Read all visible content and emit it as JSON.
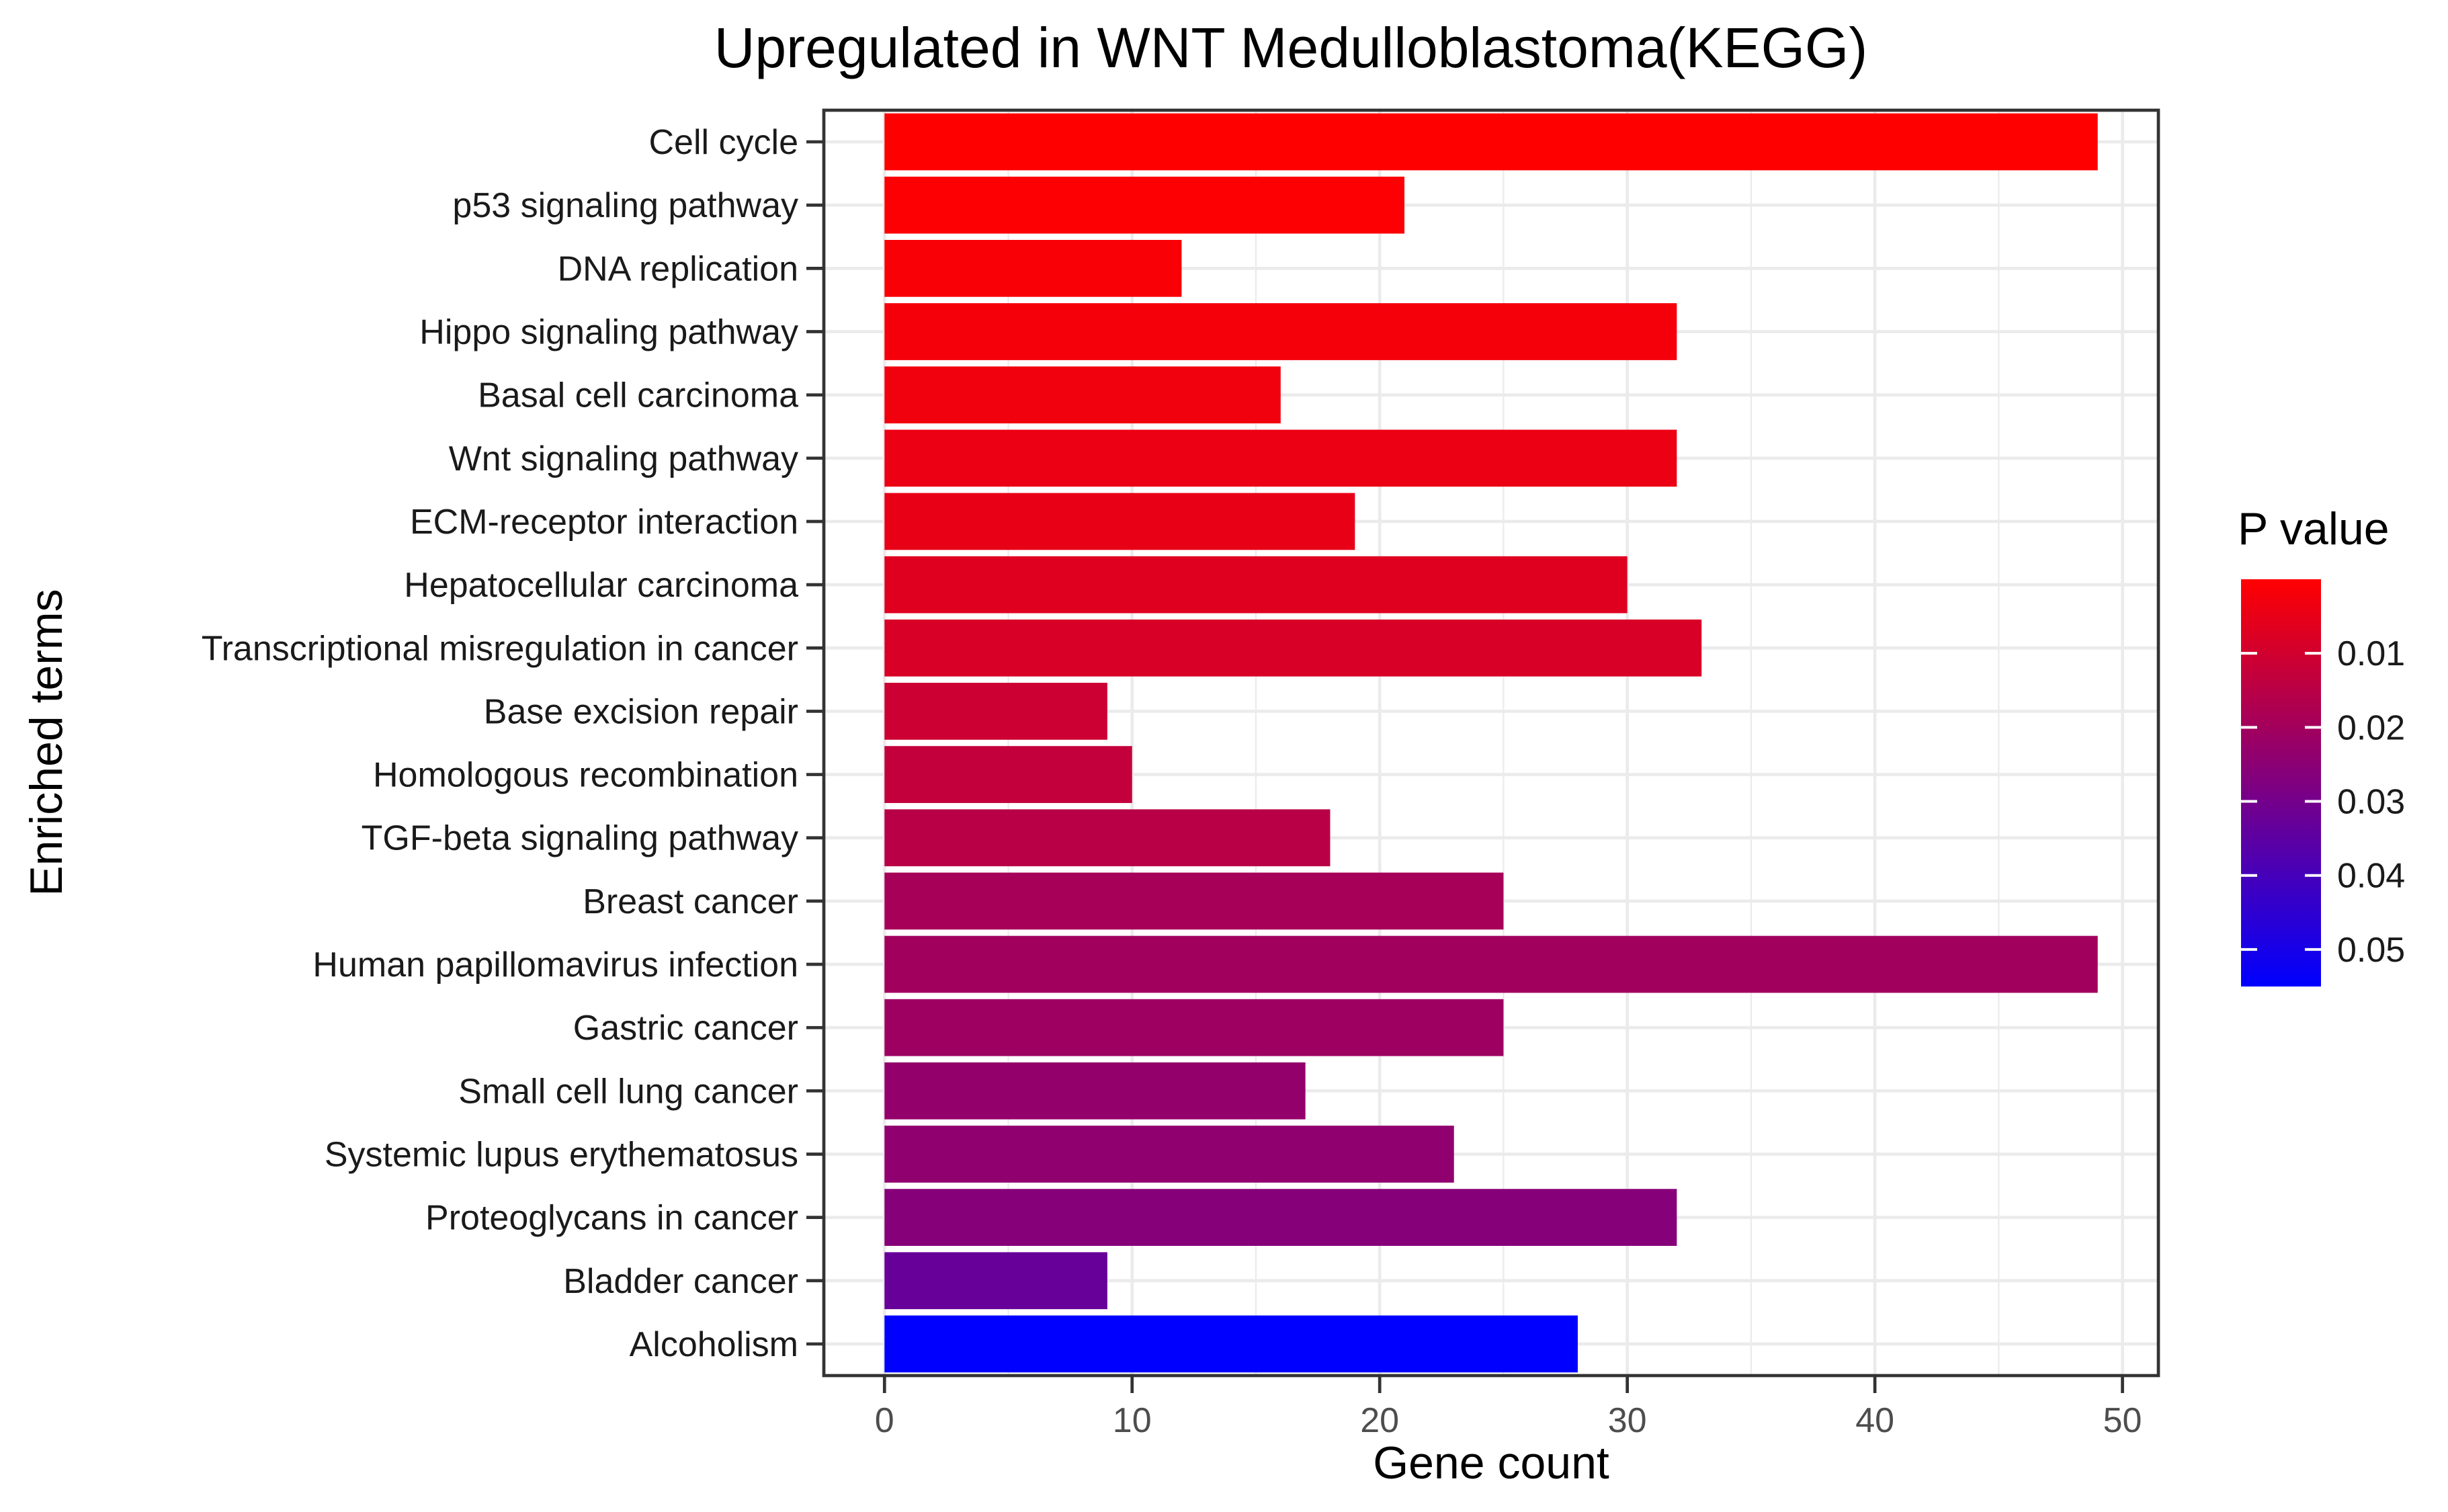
{
  "chart_data": {
    "type": "bar",
    "orientation": "horizontal",
    "title": "Upregulated in WNT Medulloblastoma(KEGG)",
    "xlabel": "Gene count",
    "ylabel": "Enriched terms",
    "xlim": [
      -2.45,
      51.45
    ],
    "x_ticks": [
      0,
      10,
      20,
      30,
      40,
      50
    ],
    "grid": true,
    "categories": [
      "Cell cycle",
      "p53 signaling pathway",
      "DNA replication",
      "Hippo signaling pathway",
      "Basal cell carcinoma",
      "Wnt signaling pathway",
      "ECM-receptor interaction",
      "Hepatocellular carcinoma",
      "Transcriptional misregulation in cancer",
      "Base excision repair",
      "Homologous recombination",
      "TGF-beta signaling pathway",
      "Breast cancer",
      "Human papillomavirus infection",
      "Gastric cancer",
      "Small cell lung cancer",
      "Systemic lupus erythematosus",
      "Proteoglycans in cancer",
      "Bladder cancer",
      "Alcoholism"
    ],
    "values": [
      49,
      21,
      12,
      32,
      16,
      32,
      19,
      30,
      33,
      9,
      10,
      18,
      25,
      49,
      25,
      17,
      23,
      32,
      9,
      28
    ],
    "p_values": [
      0.0001,
      0.0006,
      0.0012,
      0.0022,
      0.0031,
      0.004,
      0.005,
      0.007,
      0.0085,
      0.011,
      0.013,
      0.015,
      0.019,
      0.02,
      0.021,
      0.023,
      0.024,
      0.026,
      0.033,
      0.055
    ],
    "legend": {
      "title": "P value",
      "position": "right",
      "ticks": [
        0.01,
        0.02,
        0.03,
        0.04,
        0.05
      ],
      "tick_labels": [
        "0.01",
        "0.02",
        "0.03",
        "0.04",
        "0.05"
      ],
      "range": [
        0.0,
        0.055
      ],
      "low_color": "#ff0000",
      "high_color": "#0000ff"
    }
  }
}
